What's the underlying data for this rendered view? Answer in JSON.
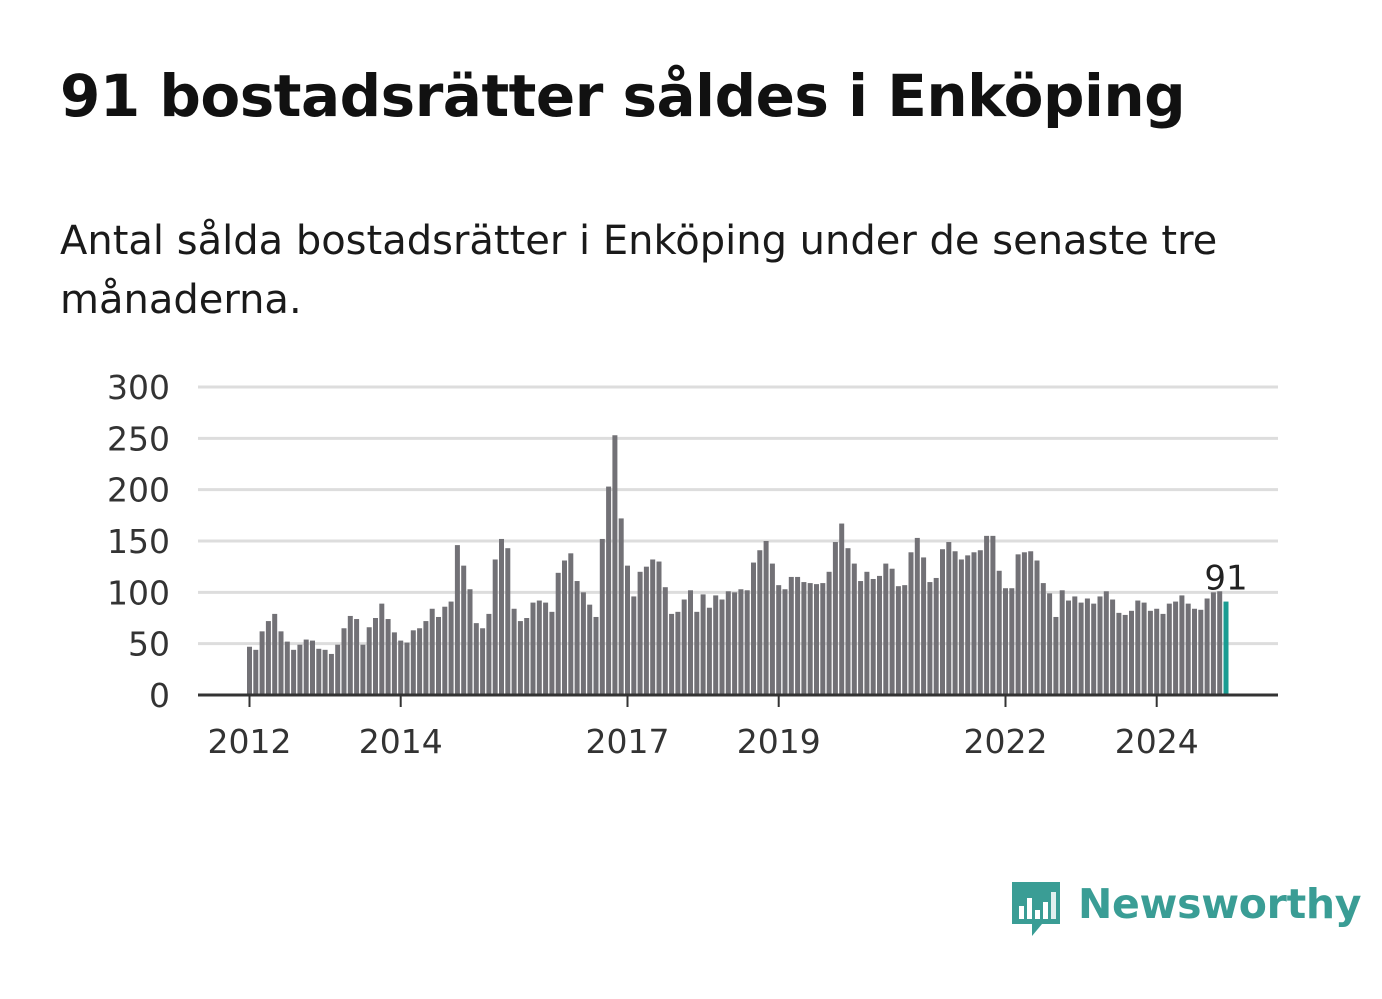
{
  "title": "91 bostadsrätter såldes i Enköping",
  "subtitle": "Antal sålda bostadsrätter i Enköping under de senaste tre månaderna.",
  "logo": {
    "text": "Newsworthy",
    "icon": "newsworthy-chat-bars-icon",
    "color": "#3a9d95"
  },
  "colors": {
    "bar": "#727176",
    "highlight": "#1a9c92",
    "grid": "#dddddd",
    "axis": "#333333"
  },
  "chart_data": {
    "type": "bar",
    "x_type": "monthly",
    "start": "2012-01",
    "end": "2024-12",
    "ylim": [
      0,
      300
    ],
    "yticks": [
      "0",
      "50",
      "100",
      "150",
      "200",
      "250",
      "300"
    ],
    "xticks": [
      "2012",
      "2014",
      "2017",
      "2019",
      "2022",
      "2024"
    ],
    "grid": true,
    "annotation": "91",
    "values": [
      47,
      44,
      62,
      72,
      79,
      62,
      52,
      44,
      49,
      54,
      53,
      45,
      44,
      40,
      49,
      65,
      77,
      74,
      49,
      66,
      75,
      89,
      74,
      61,
      53,
      51,
      63,
      65,
      72,
      84,
      76,
      86,
      91,
      146,
      126,
      103,
      70,
      65,
      79,
      132,
      152,
      143,
      84,
      72,
      75,
      90,
      92,
      90,
      81,
      119,
      131,
      138,
      111,
      100,
      88,
      76,
      152,
      203,
      253,
      172,
      126,
      96,
      120,
      125,
      132,
      130,
      105,
      79,
      81,
      93,
      102,
      81,
      98,
      85,
      97,
      93,
      101,
      100,
      103,
      102,
      129,
      141,
      150,
      128,
      107,
      103,
      115,
      115,
      110,
      109,
      108,
      109,
      120,
      149,
      167,
      143,
      128,
      111,
      120,
      113,
      116,
      128,
      123,
      106,
      107,
      139,
      153,
      134,
      110,
      114,
      142,
      149,
      140,
      132,
      136,
      139,
      141,
      155,
      155,
      121,
      104,
      104,
      137,
      139,
      140,
      131,
      109,
      99,
      76,
      102,
      92,
      96,
      90,
      94,
      89,
      96,
      101,
      93,
      80,
      78,
      82,
      92,
      90,
      82,
      84,
      79,
      89,
      91,
      97,
      89,
      84,
      83,
      94,
      100,
      101,
      91
    ]
  }
}
